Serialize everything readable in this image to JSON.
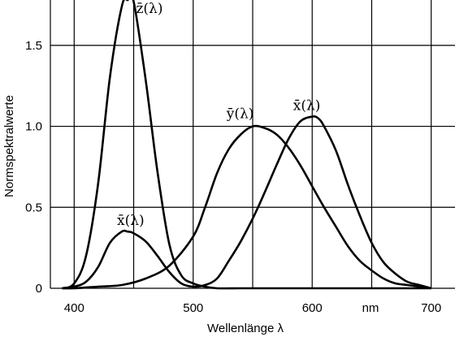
{
  "chart_data": {
    "type": "line",
    "xlabel": "Wellenlänge  λ",
    "ylabel": "Normspektralwerte",
    "x_unit": "nm",
    "xlim": [
      380,
      720
    ],
    "ylim": [
      0,
      1.78
    ],
    "x_ticks": [
      {
        "value": 400,
        "label": "400"
      },
      {
        "value": 500,
        "label": "500"
      },
      {
        "value": 600,
        "label": "600"
      },
      {
        "value": 700,
        "label": "700"
      }
    ],
    "y_ticks": [
      {
        "value": 0,
        "label": "0"
      },
      {
        "value": 0.5,
        "label": "0.5"
      },
      {
        "value": 1.0,
        "label": "1.0"
      },
      {
        "value": 1.5,
        "label": "1.5"
      }
    ],
    "grid": true,
    "series": [
      {
        "name": "z̄(λ)",
        "label_at": [
          452,
          1.7
        ],
        "points": [
          [
            390,
            0.0
          ],
          [
            400,
            0.03
          ],
          [
            410,
            0.2
          ],
          [
            420,
            0.64
          ],
          [
            430,
            1.3
          ],
          [
            440,
            1.74
          ],
          [
            445,
            1.78
          ],
          [
            450,
            1.77
          ],
          [
            460,
            1.29
          ],
          [
            470,
            0.72
          ],
          [
            480,
            0.27
          ],
          [
            490,
            0.08
          ],
          [
            500,
            0.03
          ],
          [
            510,
            0.01
          ],
          [
            520,
            0.0
          ],
          [
            540,
            0.0
          ],
          [
            560,
            0.0
          ],
          [
            600,
            0.0
          ],
          [
            700,
            0.0
          ]
        ]
      },
      {
        "name": "ȳ(λ)",
        "label_at": [
          528,
          1.05
        ],
        "points": [
          [
            390,
            0.0
          ],
          [
            400,
            0.0
          ],
          [
            420,
            0.01
          ],
          [
            440,
            0.02
          ],
          [
            460,
            0.06
          ],
          [
            480,
            0.14
          ],
          [
            500,
            0.32
          ],
          [
            510,
            0.5
          ],
          [
            520,
            0.71
          ],
          [
            530,
            0.86
          ],
          [
            540,
            0.95
          ],
          [
            550,
            1.0
          ],
          [
            560,
            0.99
          ],
          [
            570,
            0.95
          ],
          [
            580,
            0.87
          ],
          [
            590,
            0.76
          ],
          [
            600,
            0.63
          ],
          [
            610,
            0.5
          ],
          [
            620,
            0.38
          ],
          [
            630,
            0.26
          ],
          [
            640,
            0.17
          ],
          [
            650,
            0.11
          ],
          [
            660,
            0.06
          ],
          [
            670,
            0.03
          ],
          [
            680,
            0.02
          ],
          [
            690,
            0.01
          ],
          [
            700,
            0.0
          ]
        ]
      },
      {
        "name": "x̄(λ)",
        "label_at": [
          436,
          0.39
        ],
        "points": [
          [
            390,
            0.0
          ],
          [
            400,
            0.01
          ],
          [
            410,
            0.04
          ],
          [
            420,
            0.13
          ],
          [
            430,
            0.28
          ],
          [
            440,
            0.35
          ],
          [
            445,
            0.35
          ],
          [
            450,
            0.34
          ],
          [
            460,
            0.29
          ],
          [
            470,
            0.2
          ],
          [
            480,
            0.1
          ],
          [
            490,
            0.03
          ],
          [
            500,
            0.01
          ],
          [
            510,
            0.02
          ],
          [
            520,
            0.06
          ],
          [
            530,
            0.17
          ],
          [
            540,
            0.29
          ],
          [
            550,
            0.43
          ],
          [
            560,
            0.59
          ],
          [
            570,
            0.76
          ],
          [
            580,
            0.92
          ],
          [
            590,
            1.03
          ],
          [
            600,
            1.06
          ],
          [
            605,
            1.05
          ],
          [
            610,
            1.0
          ],
          [
            620,
            0.85
          ],
          [
            630,
            0.64
          ],
          [
            640,
            0.45
          ],
          [
            650,
            0.28
          ],
          [
            660,
            0.16
          ],
          [
            670,
            0.09
          ],
          [
            680,
            0.04
          ],
          [
            690,
            0.02
          ],
          [
            700,
            0.0
          ]
        ]
      }
    ],
    "extra_labels": [
      {
        "text": "x̄(λ)",
        "at": [
          584,
          1.1
        ]
      }
    ]
  }
}
